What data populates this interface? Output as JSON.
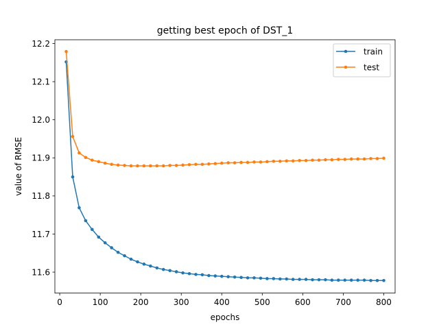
{
  "chart_data": {
    "type": "line",
    "title": "getting best epoch of DST_1",
    "xlabel": "epochs",
    "ylabel": "value of RMSE",
    "xlim": [
      -12,
      828
    ],
    "ylim": [
      11.545,
      12.21
    ],
    "xticks": [
      0,
      100,
      200,
      300,
      400,
      500,
      600,
      700,
      800
    ],
    "yticks": [
      11.6,
      11.7,
      11.8,
      11.9,
      12.0,
      12.1,
      12.2
    ],
    "ytick_labels": [
      "11.6",
      "11.7",
      "11.8",
      "11.9",
      "12.0",
      "12.1",
      "12.2"
    ],
    "grid": false,
    "legend": "top-right",
    "x": [
      16,
      32,
      48,
      64,
      80,
      96,
      112,
      128,
      144,
      160,
      176,
      192,
      208,
      224,
      240,
      256,
      272,
      288,
      304,
      320,
      336,
      352,
      368,
      384,
      400,
      416,
      432,
      448,
      464,
      480,
      496,
      512,
      528,
      544,
      560,
      576,
      592,
      608,
      624,
      640,
      656,
      672,
      688,
      704,
      720,
      736,
      752,
      768,
      784,
      800
    ],
    "series": [
      {
        "name": "train",
        "color": "#1f77b4",
        "values": [
          12.152,
          11.85,
          11.769,
          11.735,
          11.712,
          11.692,
          11.677,
          11.664,
          11.652,
          11.643,
          11.634,
          11.627,
          11.621,
          11.616,
          11.611,
          11.607,
          11.604,
          11.601,
          11.598,
          11.596,
          11.594,
          11.593,
          11.591,
          11.59,
          11.589,
          11.588,
          11.587,
          11.586,
          11.585,
          11.585,
          11.584,
          11.583,
          11.583,
          11.582,
          11.582,
          11.581,
          11.581,
          11.581,
          11.58,
          11.58,
          11.58,
          11.579,
          11.579,
          11.579,
          11.579,
          11.579,
          11.579,
          11.578,
          11.578,
          11.578
        ]
      },
      {
        "name": "test",
        "color": "#ff7f0e",
        "values": [
          12.179,
          11.956,
          11.913,
          11.901,
          11.894,
          11.89,
          11.886,
          11.883,
          11.881,
          11.88,
          11.879,
          11.879,
          11.879,
          11.879,
          11.879,
          11.879,
          11.88,
          11.88,
          11.881,
          11.882,
          11.883,
          11.883,
          11.884,
          11.885,
          11.886,
          11.887,
          11.887,
          11.888,
          11.888,
          11.889,
          11.889,
          11.89,
          11.891,
          11.891,
          11.892,
          11.892,
          11.893,
          11.893,
          11.894,
          11.894,
          11.895,
          11.895,
          11.896,
          11.896,
          11.897,
          11.897,
          11.897,
          11.898,
          11.898,
          11.899
        ]
      }
    ]
  }
}
